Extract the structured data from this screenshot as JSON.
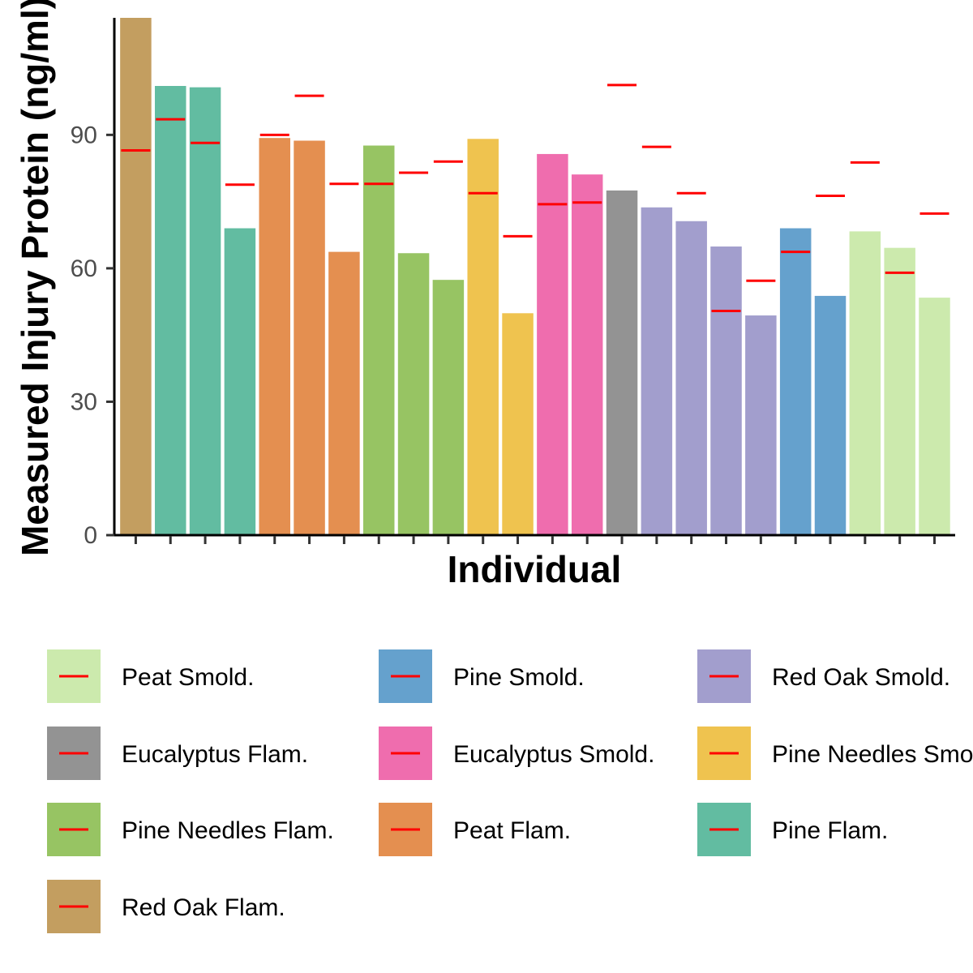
{
  "chart_data": {
    "type": "bar",
    "xlabel": "Individual",
    "ylabel": "Measured Injury Protein (ng/ml)",
    "ylim": [
      0,
      116
    ],
    "yticks": [
      0,
      30,
      60,
      90
    ],
    "grid": false,
    "legend_position": "bottom",
    "reference_color": "#ff0000",
    "groups": [
      {
        "name": "Peat Smold.",
        "color": "#cceaad"
      },
      {
        "name": "Pine Smold.",
        "color": "#65a1cd"
      },
      {
        "name": "Red Oak Smold.",
        "color": "#a29ecd"
      },
      {
        "name": "Eucalyptus Flam.",
        "color": "#939393"
      },
      {
        "name": "Eucalyptus Smold.",
        "color": "#ef6dae"
      },
      {
        "name": "Pine Needles Smold.",
        "color": "#efc34f"
      },
      {
        "name": "Pine Needles Flam.",
        "color": "#97c463"
      },
      {
        "name": "Peat Flam.",
        "color": "#e48f50"
      },
      {
        "name": "Pine Flam.",
        "color": "#62bca1"
      },
      {
        "name": "Red Oak Flam.",
        "color": "#c39e60"
      }
    ],
    "bars": [
      {
        "group": "Red Oak Flam.",
        "value": 116.5,
        "reference": 86.5
      },
      {
        "group": "Pine Flam.",
        "value": 101,
        "reference": 93.5
      },
      {
        "group": "Pine Flam.",
        "value": 100.7,
        "reference": 88.2
      },
      {
        "group": "Pine Flam.",
        "value": 69,
        "reference": 78.8
      },
      {
        "group": "Peat Flam.",
        "value": 89.3,
        "reference": 90
      },
      {
        "group": "Peat Flam.",
        "value": 88.7,
        "reference": 98.8
      },
      {
        "group": "Peat Flam.",
        "value": 63.7,
        "reference": 79
      },
      {
        "group": "Pine Needles Flam.",
        "value": 87.6,
        "reference": 79
      },
      {
        "group": "Pine Needles Flam.",
        "value": 63.4,
        "reference": 81.5
      },
      {
        "group": "Pine Needles Flam.",
        "value": 57.4,
        "reference": 84
      },
      {
        "group": "Pine Needles Smold.",
        "value": 89.1,
        "reference": 76.9
      },
      {
        "group": "Pine Needles Smold.",
        "value": 49.9,
        "reference": 67.2
      },
      {
        "group": "Eucalyptus Smold.",
        "value": 85.7,
        "reference": 74.4
      },
      {
        "group": "Eucalyptus Smold.",
        "value": 81.1,
        "reference": 74.8
      },
      {
        "group": "Eucalyptus Flam.",
        "value": 77.5,
        "reference": 101.2
      },
      {
        "group": "Red Oak Smold.",
        "value": 73.7,
        "reference": 87.3
      },
      {
        "group": "Red Oak Smold.",
        "value": 70.6,
        "reference": 76.9
      },
      {
        "group": "Red Oak Smold.",
        "value": 64.9,
        "reference": 50.4
      },
      {
        "group": "Red Oak Smold.",
        "value": 49.4,
        "reference": 57.2
      },
      {
        "group": "Pine Smold.",
        "value": 69,
        "reference": 63.7
      },
      {
        "group": "Pine Smold.",
        "value": 53.8,
        "reference": 76.3
      },
      {
        "group": "Peat Smold.",
        "value": 68.3,
        "reference": 83.8
      },
      {
        "group": "Peat Smold.",
        "value": 64.6,
        "reference": 59
      },
      {
        "group": "Peat Smold.",
        "value": 53.4,
        "reference": 72.3
      }
    ]
  }
}
